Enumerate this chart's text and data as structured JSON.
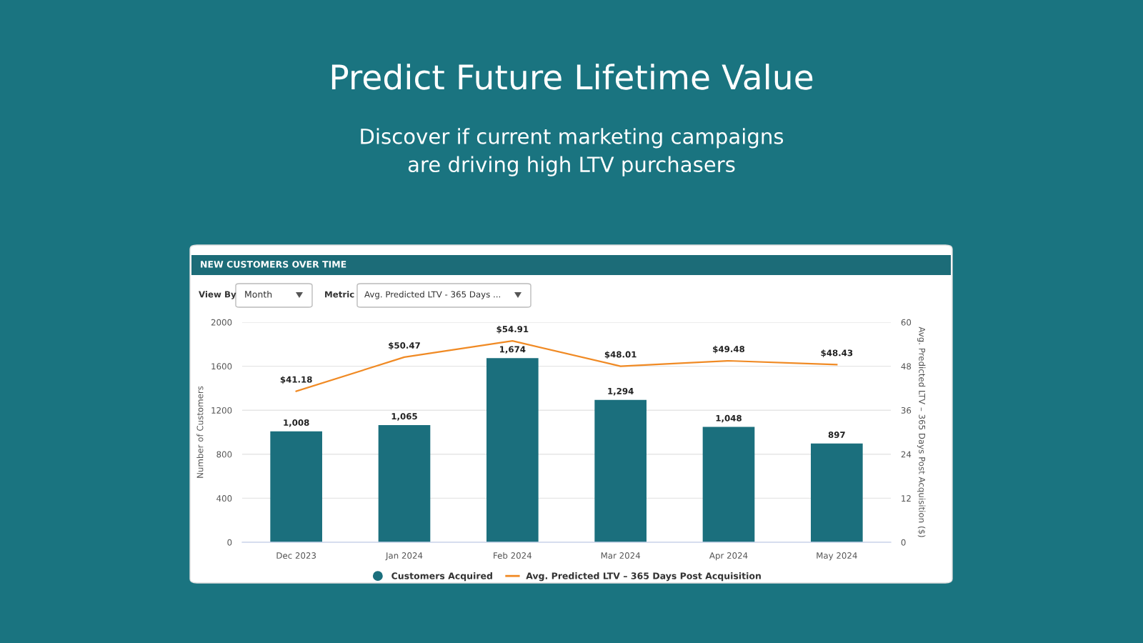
{
  "chart_data": {
    "type": "bar",
    "title": "Predict Future Lifetime Value",
    "subtitle": "Discover if current marketing campaigns\nare driving high LTV purchasers",
    "annotations": [
      "NEW CUSTOMERS OVER TIME",
      "View By",
      "Month",
      "Metric",
      "Avg. Predicted LTV - 365 Days ..."
    ],
    "categories": [
      "Dec 2023",
      "Jan 2024",
      "Feb 2024",
      "Mar 2024",
      "Apr 2024",
      "May 2024"
    ],
    "series": [
      {
        "name": "Customers Acquired",
        "color": "#1b6f7d",
        "values": [
          1008,
          1065,
          1674,
          1294,
          1048,
          897
        ],
        "value_labels": [
          "1,008",
          "1,065",
          "1,674",
          "1,294",
          "1,048",
          "897"
        ]
      },
      {
        "name": "Avg. Predicted LTV – 365 Days Post Acquisition",
        "type": "line",
        "axis": "y2",
        "color": "#f08a24",
        "values": [
          41.18,
          50.47,
          54.91,
          48.01,
          49.48,
          48.43
        ],
        "value_labels": [
          "$41.18",
          "$50.47",
          "$54.91",
          "$48.01",
          "$49.48",
          "$48.43"
        ]
      }
    ],
    "ylabel": "Number of Customers",
    "y2label": "Avg. Predicted LTV – 365 Days Post Acquisition ($)",
    "ylim": [
      0,
      2000
    ],
    "yticks": [
      0,
      400,
      800,
      1200,
      1600,
      2000
    ],
    "y2lim": [
      0,
      60
    ],
    "y2ticks": [
      0,
      12,
      24,
      36,
      48,
      60
    ],
    "grid": "y",
    "legend": "bottom",
    "marker": "none",
    "line_style": "solid"
  }
}
